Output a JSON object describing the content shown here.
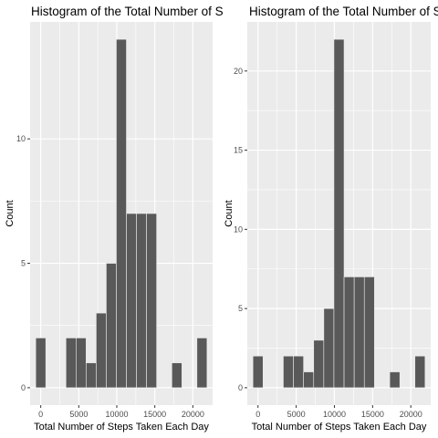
{
  "chart_data": [
    {
      "type": "bar",
      "title": "Histogram of the Total Number of Steps Taken Each Day",
      "xlabel": "Total Number of Steps Taken Each Day",
      "ylabel": "Count",
      "bin_width": 1325,
      "bin_centers": [
        0,
        3975,
        5300,
        6625,
        7950,
        9275,
        10600,
        11925,
        13250,
        14575,
        17900,
        21200
      ],
      "values": [
        2,
        2,
        2,
        1,
        3,
        5,
        14,
        7,
        7,
        7,
        1,
        2
      ],
      "xlim": [
        -1400,
        22600
      ],
      "ylim": [
        -0.7,
        14.7
      ],
      "x_ticks": [
        0,
        5000,
        10000,
        15000,
        20000
      ],
      "x_tick_labels": [
        "0",
        "5000",
        "10000",
        "15000",
        "20000"
      ],
      "y_ticks": [
        0,
        5,
        10
      ],
      "y_tick_labels": [
        "0",
        "5",
        "10"
      ],
      "bar_color": "#595959",
      "panel_color": "#ebebeb",
      "grid": true
    },
    {
      "type": "bar",
      "title": "Histogram of the Total Number of Steps Taken Each Day",
      "xlabel": "Total Number of Steps Taken Each Day",
      "ylabel": "Count",
      "bin_width": 1325,
      "bin_centers": [
        0,
        3975,
        5300,
        6625,
        7950,
        9275,
        10600,
        11925,
        13250,
        14575,
        17900,
        21200
      ],
      "values": [
        2,
        2,
        2,
        1,
        3,
        5,
        22,
        7,
        7,
        7,
        1,
        2
      ],
      "xlim": [
        -1400,
        22600
      ],
      "ylim": [
        -1.1,
        23.1
      ],
      "x_ticks": [
        0,
        5000,
        10000,
        15000,
        20000
      ],
      "x_tick_labels": [
        "0",
        "5000",
        "10000",
        "15000",
        "20000"
      ],
      "y_ticks": [
        0,
        5,
        10,
        15,
        20
      ],
      "y_tick_labels": [
        "0",
        "5",
        "10",
        "15",
        "20"
      ],
      "bar_color": "#595959",
      "panel_color": "#ebebeb",
      "grid": true
    }
  ]
}
